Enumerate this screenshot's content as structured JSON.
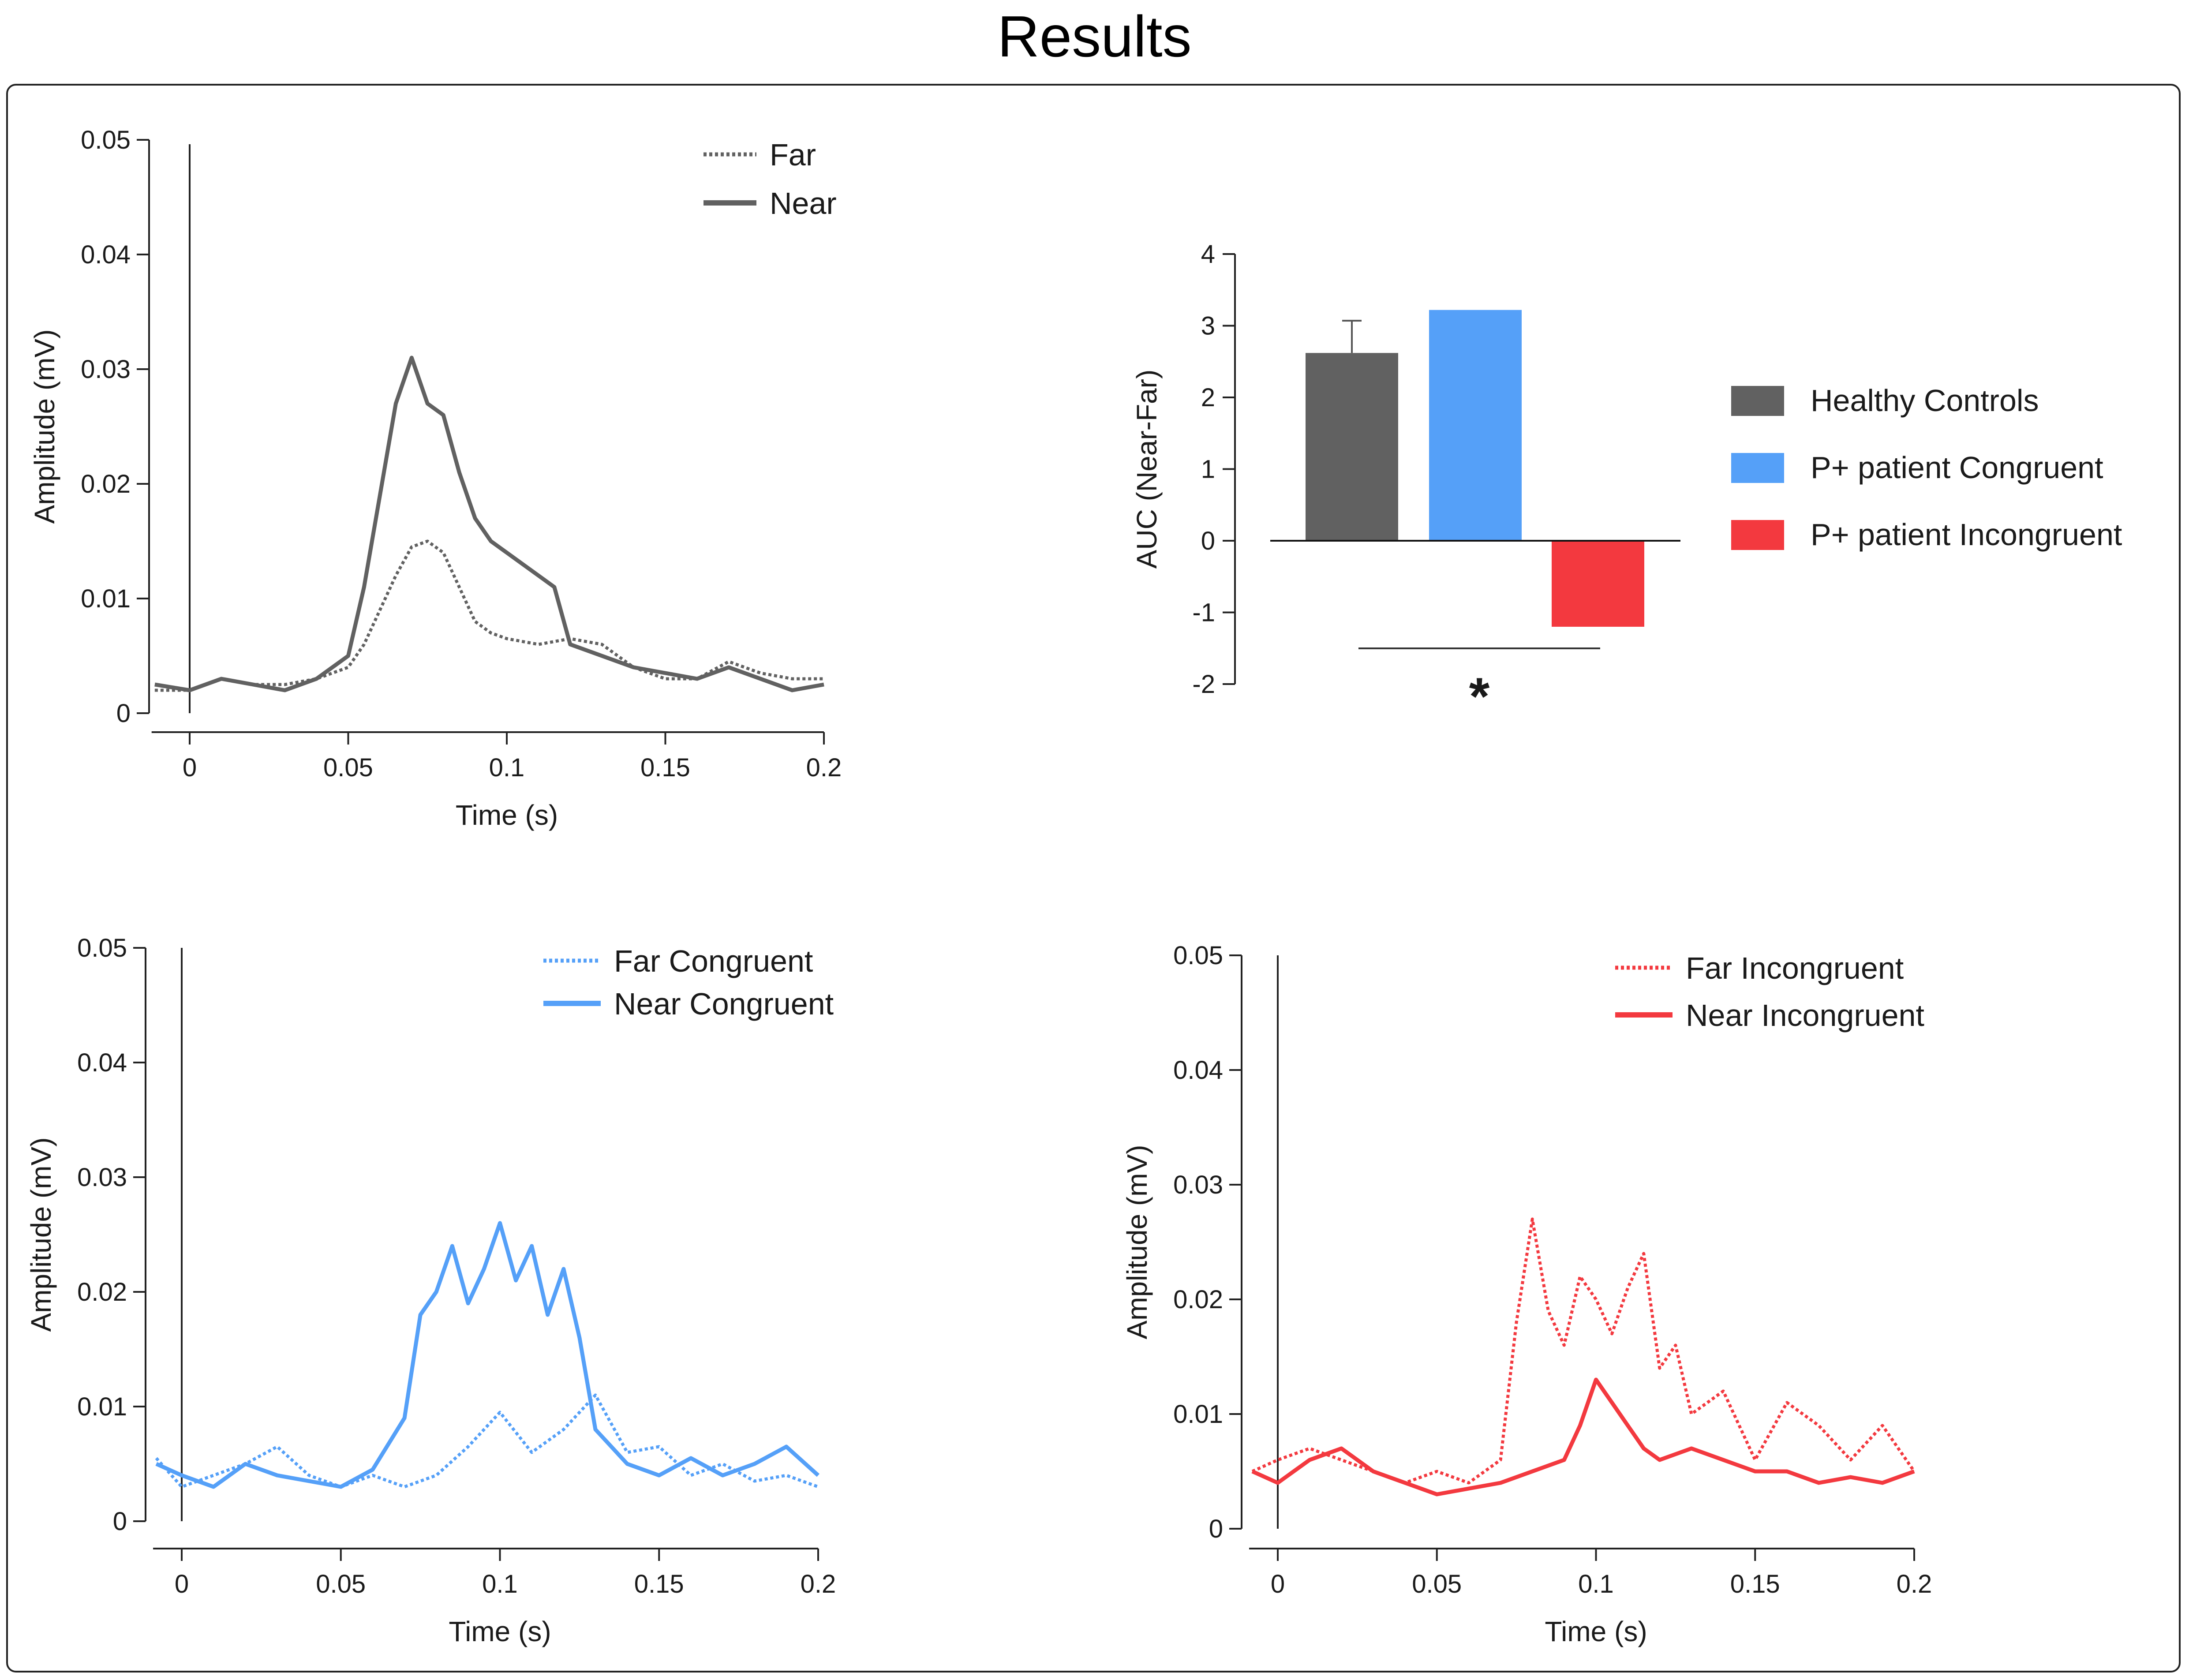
{
  "title": "Results",
  "colors": {
    "gray": "#616161",
    "blue": "#55a0f8",
    "red": "#f3393f"
  },
  "chart_data": [
    {
      "type": "line",
      "id": "healthy",
      "color": "#616161",
      "xlabel": "Time (s)",
      "ylabel": "Amplitude (mV)",
      "xlim": [
        -0.012,
        0.2
      ],
      "ylim": [
        0,
        0.05
      ],
      "xticks": [
        "0",
        "0.05",
        "0.1",
        "0.15",
        "0.2"
      ],
      "xtick_values": [
        0,
        0.05,
        0.1,
        0.15,
        0.2
      ],
      "yticks": [
        "0",
        "0.01",
        "0.02",
        "0.03",
        "0.04",
        "0.05"
      ],
      "ytick_values": [
        0,
        0.01,
        0.02,
        0.03,
        0.04,
        0.05
      ],
      "legend": "top-right",
      "series": [
        {
          "name": "Far",
          "style": "dotted",
          "x": [
            -0.011,
            0.0,
            0.01,
            0.02,
            0.03,
            0.04,
            0.05,
            0.055,
            0.06,
            0.065,
            0.07,
            0.075,
            0.08,
            0.085,
            0.09,
            0.095,
            0.1,
            0.11,
            0.12,
            0.13,
            0.14,
            0.15,
            0.16,
            0.17,
            0.18,
            0.19,
            0.2
          ],
          "y": [
            0.002,
            0.002,
            0.003,
            0.0025,
            0.0025,
            0.003,
            0.004,
            0.006,
            0.009,
            0.012,
            0.0145,
            0.015,
            0.014,
            0.011,
            0.008,
            0.007,
            0.0065,
            0.006,
            0.0065,
            0.006,
            0.004,
            0.003,
            0.003,
            0.0045,
            0.0035,
            0.003,
            0.003
          ]
        },
        {
          "name": "Near",
          "style": "solid",
          "x": [
            -0.011,
            0.0,
            0.01,
            0.02,
            0.03,
            0.04,
            0.05,
            0.055,
            0.06,
            0.065,
            0.07,
            0.075,
            0.08,
            0.085,
            0.09,
            0.095,
            0.1,
            0.105,
            0.11,
            0.115,
            0.12,
            0.13,
            0.14,
            0.15,
            0.16,
            0.17,
            0.18,
            0.19,
            0.2
          ],
          "y": [
            0.0025,
            0.002,
            0.003,
            0.0025,
            0.002,
            0.003,
            0.005,
            0.011,
            0.019,
            0.027,
            0.031,
            0.027,
            0.026,
            0.021,
            0.017,
            0.015,
            0.014,
            0.013,
            0.012,
            0.011,
            0.006,
            0.005,
            0.004,
            0.0035,
            0.003,
            0.004,
            0.003,
            0.002,
            0.0025
          ]
        }
      ]
    },
    {
      "type": "bar",
      "id": "auc",
      "ylabel": "AUC (Near-Far)",
      "ylim": [
        -2,
        4
      ],
      "yticks": [
        "-2",
        "-1",
        "0",
        "1",
        "2",
        "3",
        "4"
      ],
      "ytick_values": [
        -2,
        -1,
        0,
        1,
        2,
        3,
        4
      ],
      "categories": [
        "Healthy Controls",
        "P+ patient Congruent",
        "P+ patient Incongruent"
      ],
      "values": [
        2.62,
        3.22,
        -1.2
      ],
      "error_plus": [
        0.45,
        0,
        0
      ],
      "bar_colors": [
        "#616161",
        "#55a0f8",
        "#f3393f"
      ],
      "significance": {
        "between": [
          0,
          2
        ],
        "label": "*"
      },
      "legend": "right"
    },
    {
      "type": "line",
      "id": "congruent",
      "color": "#55a0f8",
      "xlabel": "Time (s)",
      "ylabel": "Amplitude (mV)",
      "xlim": [
        -0.009,
        0.2
      ],
      "ylim": [
        0,
        0.05
      ],
      "xticks": [
        "0",
        "0.05",
        "0.1",
        "0.15",
        "0.2"
      ],
      "xtick_values": [
        0,
        0.05,
        0.1,
        0.15,
        0.2
      ],
      "yticks": [
        "0",
        "0.01",
        "0.02",
        "0.03",
        "0.04",
        "0.05"
      ],
      "ytick_values": [
        0,
        0.01,
        0.02,
        0.03,
        0.04,
        0.05
      ],
      "legend": "top-right",
      "series": [
        {
          "name": "Far Congruent",
          "style": "dotted",
          "x": [
            -0.008,
            0.0,
            0.01,
            0.02,
            0.03,
            0.04,
            0.05,
            0.06,
            0.07,
            0.08,
            0.09,
            0.1,
            0.11,
            0.12,
            0.13,
            0.14,
            0.15,
            0.16,
            0.17,
            0.18,
            0.19,
            0.2
          ],
          "y": [
            0.0055,
            0.003,
            0.004,
            0.005,
            0.0065,
            0.004,
            0.003,
            0.004,
            0.003,
            0.004,
            0.0065,
            0.0095,
            0.006,
            0.008,
            0.011,
            0.006,
            0.0065,
            0.004,
            0.005,
            0.0035,
            0.004,
            0.003
          ]
        },
        {
          "name": "Near Congruent",
          "style": "solid",
          "x": [
            -0.008,
            0.0,
            0.01,
            0.02,
            0.03,
            0.04,
            0.05,
            0.06,
            0.07,
            0.075,
            0.08,
            0.085,
            0.09,
            0.095,
            0.1,
            0.105,
            0.11,
            0.115,
            0.12,
            0.125,
            0.13,
            0.14,
            0.15,
            0.16,
            0.17,
            0.18,
            0.19,
            0.2
          ],
          "y": [
            0.005,
            0.004,
            0.003,
            0.005,
            0.004,
            0.0035,
            0.003,
            0.0045,
            0.009,
            0.018,
            0.02,
            0.024,
            0.019,
            0.022,
            0.026,
            0.021,
            0.024,
            0.018,
            0.022,
            0.016,
            0.008,
            0.005,
            0.004,
            0.0055,
            0.004,
            0.005,
            0.0065,
            0.004
          ]
        }
      ]
    },
    {
      "type": "line",
      "id": "incongruent",
      "color": "#f3393f",
      "xlabel": "Time (s)",
      "ylabel": "Amplitude (mV)",
      "xlim": [
        -0.009,
        0.2
      ],
      "ylim": [
        0,
        0.05
      ],
      "xticks": [
        "0",
        "0.05",
        "0.1",
        "0.15",
        "0.2"
      ],
      "xtick_values": [
        0,
        0.05,
        0.1,
        0.15,
        0.2
      ],
      "yticks": [
        "0",
        "0.01",
        "0.02",
        "0.03",
        "0.04",
        "0.05"
      ],
      "ytick_values": [
        0,
        0.01,
        0.02,
        0.03,
        0.04,
        0.05
      ],
      "legend": "top-right",
      "series": [
        {
          "name": "Far Incongruent",
          "style": "dotted",
          "x": [
            -0.008,
            0.0,
            0.01,
            0.02,
            0.03,
            0.04,
            0.05,
            0.06,
            0.07,
            0.075,
            0.08,
            0.085,
            0.09,
            0.095,
            0.1,
            0.105,
            0.11,
            0.115,
            0.12,
            0.125,
            0.13,
            0.14,
            0.15,
            0.16,
            0.17,
            0.18,
            0.19,
            0.2
          ],
          "y": [
            0.005,
            0.006,
            0.007,
            0.006,
            0.005,
            0.004,
            0.005,
            0.004,
            0.006,
            0.018,
            0.027,
            0.019,
            0.016,
            0.022,
            0.02,
            0.017,
            0.021,
            0.024,
            0.014,
            0.016,
            0.01,
            0.012,
            0.006,
            0.011,
            0.009,
            0.006,
            0.009,
            0.005
          ]
        },
        {
          "name": "Near Incongruent",
          "style": "solid",
          "x": [
            -0.008,
            0.0,
            0.01,
            0.02,
            0.03,
            0.04,
            0.05,
            0.06,
            0.07,
            0.08,
            0.09,
            0.095,
            0.1,
            0.105,
            0.11,
            0.115,
            0.12,
            0.13,
            0.14,
            0.15,
            0.16,
            0.17,
            0.18,
            0.19,
            0.2
          ],
          "y": [
            0.005,
            0.004,
            0.006,
            0.007,
            0.005,
            0.004,
            0.003,
            0.0035,
            0.004,
            0.005,
            0.006,
            0.009,
            0.013,
            0.011,
            0.009,
            0.007,
            0.006,
            0.007,
            0.006,
            0.005,
            0.005,
            0.004,
            0.0045,
            0.004,
            0.005
          ]
        }
      ]
    }
  ]
}
